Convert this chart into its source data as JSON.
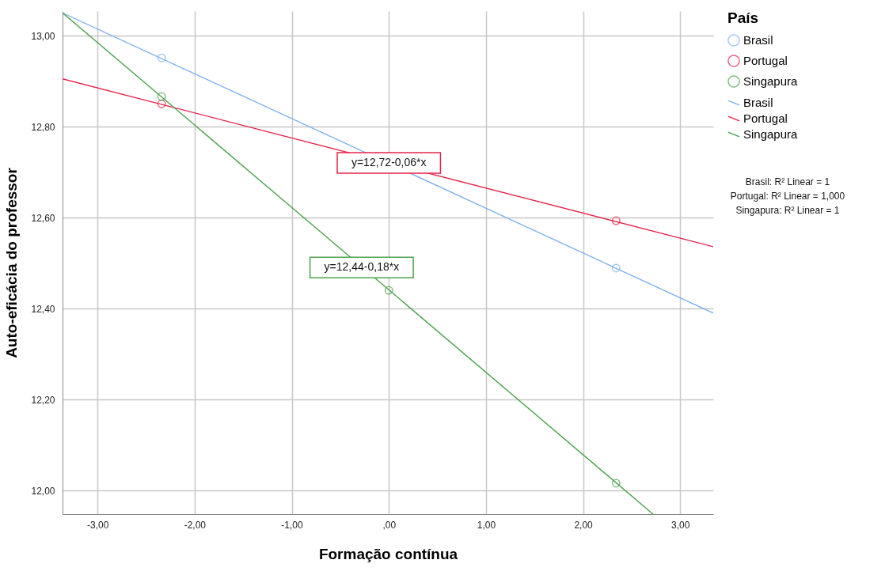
{
  "chart_data": {
    "type": "scatter",
    "xlabel": "Formação contínua",
    "ylabel": "Auto-eficácia do professor",
    "legend_title": "País",
    "xlim": [
      -3.36,
      3.34
    ],
    "ylim": [
      11.948,
      13.054
    ],
    "xticks": [
      {
        "value": -3,
        "label": "-3,00"
      },
      {
        "value": -2,
        "label": "-2,00"
      },
      {
        "value": -1,
        "label": "-1,00"
      },
      {
        "value": 0,
        "label": ",00"
      },
      {
        "value": 1,
        "label": "1,00"
      },
      {
        "value": 2,
        "label": "2,00"
      },
      {
        "value": 3,
        "label": "3,00"
      }
    ],
    "yticks": [
      {
        "value": 12.0,
        "label": "12,00"
      },
      {
        "value": 12.2,
        "label": "12,20"
      },
      {
        "value": 12.4,
        "label": "12,40"
      },
      {
        "value": 12.6,
        "label": "12,60"
      },
      {
        "value": 12.8,
        "label": "12,80"
      },
      {
        "value": 13.0,
        "label": "13,00"
      }
    ],
    "grid": true,
    "legend": "top right",
    "series": [
      {
        "name": "Brasil",
        "color": "#7eb1ee",
        "marker": "circle",
        "x": [
          -2.34,
          2.34
        ],
        "values": [
          12.951,
          12.489
        ]
      },
      {
        "name": "Portugal",
        "color": "#e8234a",
        "marker": "circle",
        "x": [
          -2.34,
          2.34
        ],
        "values": [
          12.85,
          12.593
        ]
      },
      {
        "name": "Singapura",
        "color": "#4ea24e",
        "marker": "circle",
        "x": [
          -2.34,
          0.0,
          2.34
        ],
        "values": [
          12.866,
          12.44,
          12.016
        ]
      },
      {
        "name": "Brasil",
        "type": "line",
        "color": "#7eb1ee",
        "marker": "none",
        "line_style": "solid",
        "x": [
          -3.36,
          3.34
        ],
        "values": [
          13.05,
          12.39
        ]
      },
      {
        "name": "Portugal",
        "type": "line",
        "color": "#e8234a",
        "marker": "none",
        "line_style": "solid",
        "x": [
          -3.36,
          3.34
        ],
        "values": [
          12.905,
          12.536
        ]
      },
      {
        "name": "Singapura",
        "type": "line",
        "color": "#4ea24e",
        "marker": "none",
        "line_style": "solid",
        "x": [
          -3.36,
          2.72
        ],
        "values": [
          13.05,
          11.948
        ]
      }
    ],
    "annotations": [
      {
        "text": "y=12,72-0,06*x",
        "x": 0.0,
        "y": 12.72
      },
      {
        "text": "y=12,44-0,18*x",
        "x": -0.28,
        "y": 12.49
      },
      "Brasil: R² Linear = 1",
      "Portugal: R² Linear = 1,000",
      "Singapura: R² Linear = 1"
    ]
  }
}
